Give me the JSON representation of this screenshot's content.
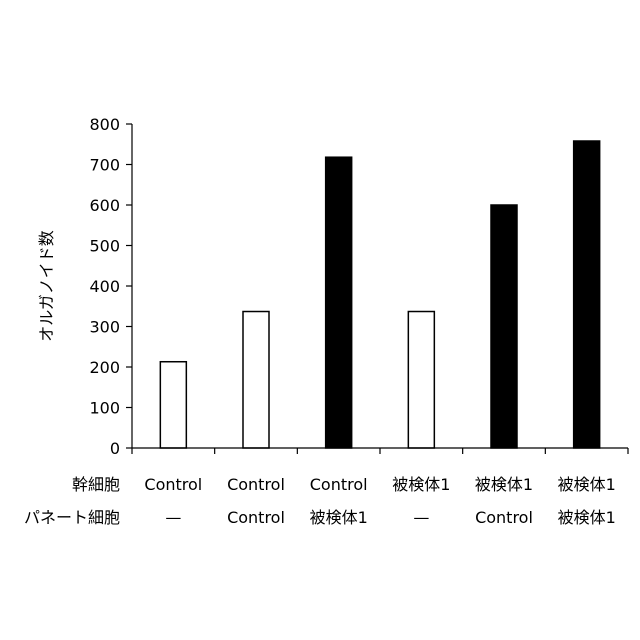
{
  "chart_data": {
    "type": "bar",
    "title": "",
    "xlabel": "",
    "ylabel": "オルガノイド数",
    "ylim": [
      0,
      800
    ],
    "yticks": [
      0,
      100,
      200,
      300,
      400,
      500,
      600,
      700,
      800
    ],
    "grid": false,
    "legend": "none",
    "category_rows": [
      {
        "label": "幹細胞",
        "values": [
          "Control",
          "Control",
          "Control",
          "被検体1",
          "被検体1",
          "被検体1"
        ]
      },
      {
        "label": "パネート細胞",
        "values": [
          "—",
          "Control",
          "被検体1",
          "—",
          "Control",
          "被検体1"
        ]
      }
    ],
    "values": [
      213,
      337,
      718,
      337,
      600,
      758
    ],
    "bar_fills": [
      "#ffffff",
      "#ffffff",
      "#000000",
      "#ffffff",
      "#000000",
      "#000000"
    ],
    "bar_stroke": "#000000"
  }
}
